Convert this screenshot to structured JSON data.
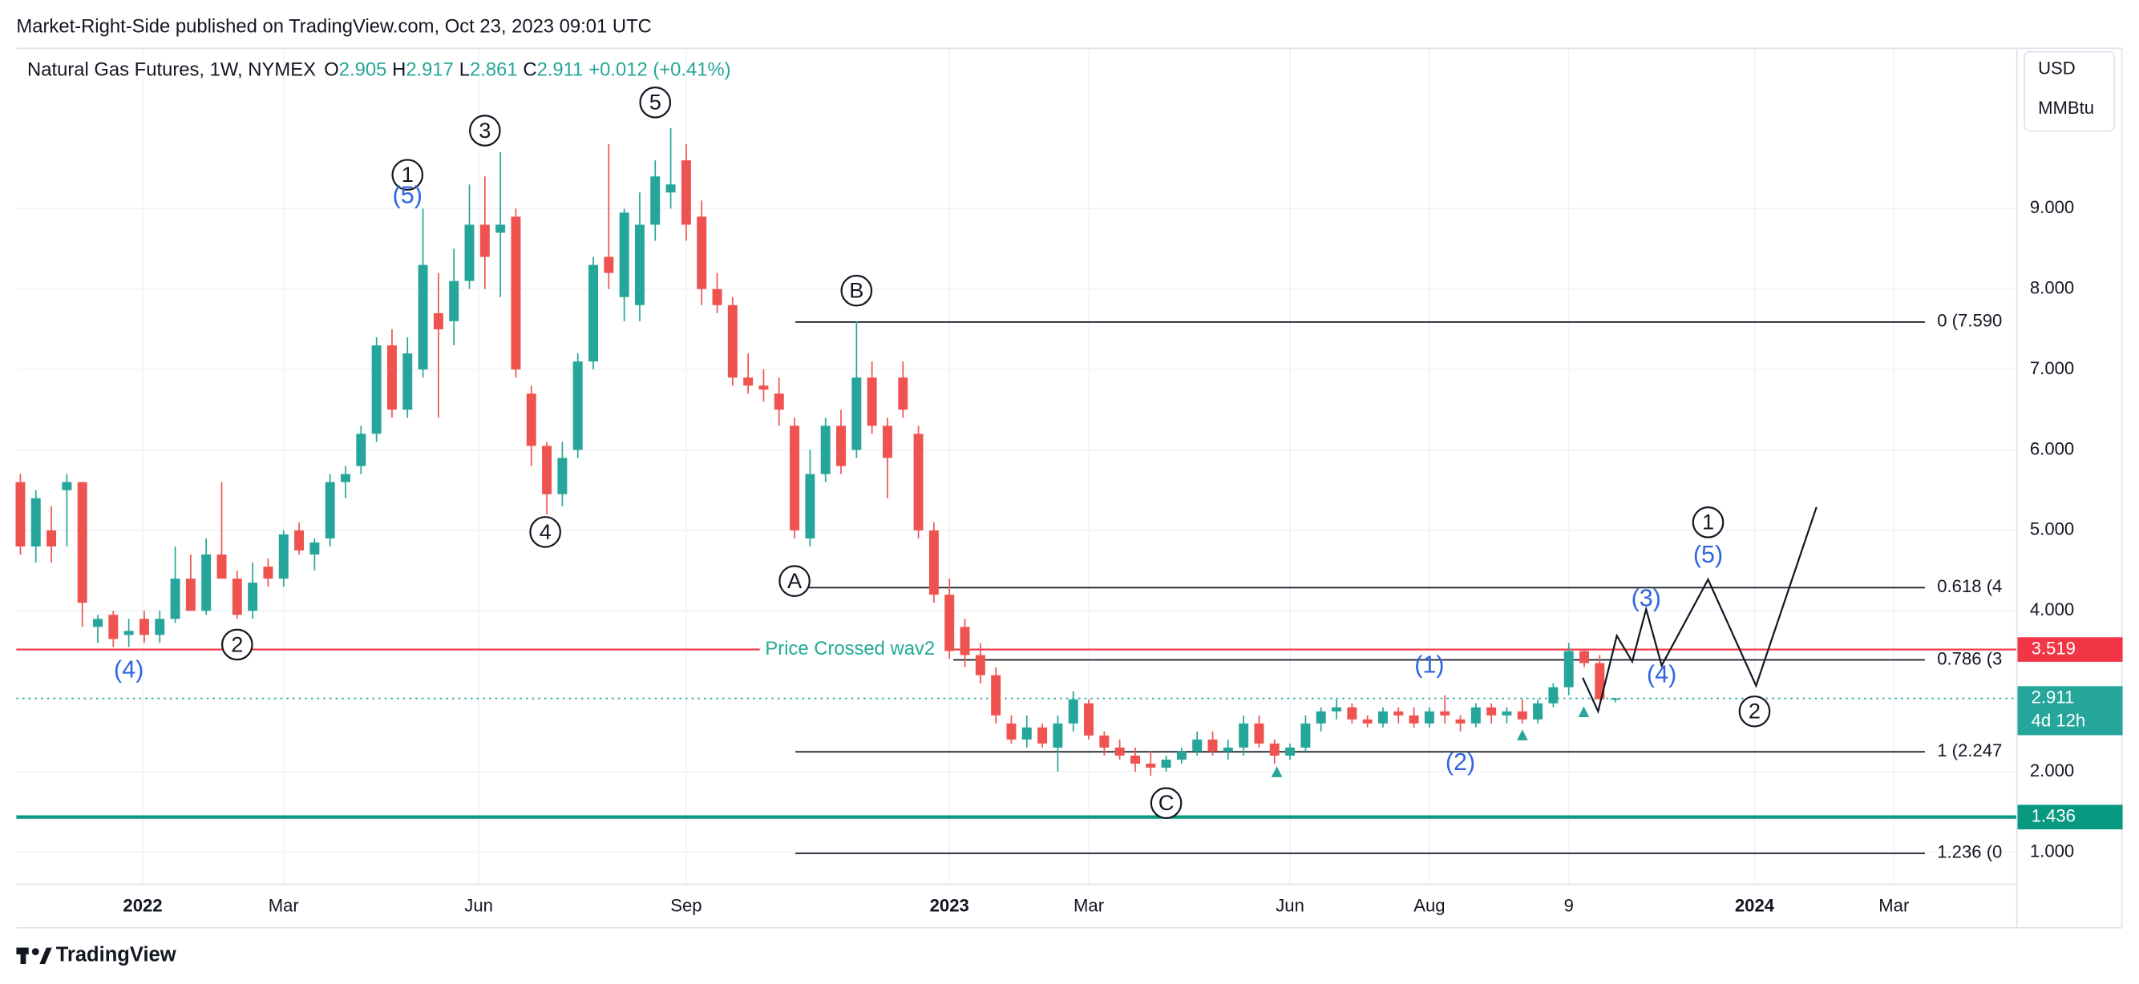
{
  "chart_data": {
    "type": "candlestick",
    "publisher": "Market-Right-Side published on TradingView.com, Oct 23, 2023 09:01 UTC",
    "title": "Natural Gas Futures, 1W, NYMEX",
    "legend": [
      {
        "name": "O",
        "value": 2.905
      },
      {
        "name": "H",
        "value": 2.917
      },
      {
        "name": "L",
        "value": 2.861
      },
      {
        "name": "C",
        "value": 2.911
      }
    ],
    "change": "+0.012 (+0.41%)",
    "currency": "USD",
    "unit": "MMBtu",
    "brand": "TradingView",
    "up_color": "#26a69a",
    "down_color": "#ef5350",
    "x": [
      0,
      1,
      2,
      3,
      4,
      5,
      6,
      7,
      8,
      9,
      10,
      11,
      12,
      13,
      14,
      15,
      16,
      17,
      18,
      19,
      20,
      21,
      22,
      23,
      24,
      25,
      26,
      27,
      28,
      29,
      30,
      31,
      32,
      33,
      34,
      35,
      36,
      37,
      38,
      39,
      40,
      41,
      42,
      43,
      44,
      45,
      46,
      47,
      48,
      49,
      50,
      51,
      52,
      53,
      54,
      55,
      56,
      57,
      58,
      59,
      60,
      61,
      62,
      63,
      64,
      65,
      66,
      67,
      68,
      69,
      70,
      71,
      72,
      73,
      74,
      75,
      76,
      77,
      78,
      79,
      80,
      81,
      82,
      83,
      84,
      85,
      86,
      87,
      88,
      89,
      90,
      91,
      92,
      93,
      94,
      95,
      96,
      97,
      98,
      99,
      100,
      101,
      102,
      103
    ],
    "open": [
      5.6,
      4.8,
      5.0,
      5.5,
      5.6,
      3.8,
      3.95,
      3.7,
      3.9,
      3.7,
      3.9,
      4.4,
      4.0,
      4.7,
      4.4,
      4.0,
      4.55,
      4.4,
      5.0,
      4.7,
      4.9,
      5.6,
      5.8,
      6.2,
      7.3,
      6.5,
      7.0,
      7.7,
      7.6,
      8.1,
      8.8,
      8.7,
      8.9,
      6.7,
      6.05,
      5.45,
      6.0,
      7.1,
      8.4,
      7.9,
      7.8,
      8.8,
      9.2,
      9.6,
      8.9,
      8.0,
      7.8,
      6.9,
      6.8,
      6.7,
      6.3,
      4.9,
      5.7,
      6.3,
      6.0,
      6.9,
      6.3,
      6.9,
      6.2,
      5.0,
      4.2,
      3.8,
      3.45,
      3.2,
      2.6,
      2.4,
      2.55,
      2.3,
      2.6,
      2.85,
      2.45,
      2.3,
      2.2,
      2.1,
      2.05,
      2.15,
      2.25,
      2.4,
      2.25,
      2.3,
      2.6,
      2.35,
      2.2,
      2.3,
      2.6,
      2.75,
      2.8,
      2.65,
      2.6,
      2.75,
      2.7,
      2.6,
      2.75,
      2.65,
      2.6,
      2.8,
      2.7,
      2.75,
      2.65,
      2.85,
      3.05,
      3.5,
      3.35,
      2.905
    ],
    "high": [
      5.7,
      5.5,
      5.3,
      5.7,
      5.6,
      3.95,
      4.0,
      3.9,
      4.0,
      4.0,
      4.8,
      4.7,
      4.9,
      5.6,
      4.5,
      4.6,
      4.65,
      5.0,
      5.1,
      4.9,
      5.7,
      5.8,
      6.3,
      7.4,
      7.5,
      7.4,
      9.0,
      8.2,
      8.5,
      9.3,
      9.4,
      9.7,
      9.0,
      6.8,
      6.1,
      6.1,
      7.2,
      8.4,
      9.8,
      9.0,
      9.2,
      9.6,
      10.0,
      9.8,
      9.1,
      8.2,
      7.9,
      7.2,
      7.0,
      6.9,
      6.4,
      6.0,
      6.4,
      6.5,
      7.6,
      7.1,
      6.4,
      7.1,
      6.3,
      5.1,
      4.4,
      3.9,
      3.6,
      3.3,
      2.7,
      2.7,
      2.6,
      2.7,
      3.0,
      2.9,
      2.5,
      2.4,
      2.3,
      2.25,
      2.2,
      2.3,
      2.5,
      2.5,
      2.4,
      2.7,
      2.7,
      2.4,
      2.35,
      2.7,
      2.8,
      2.9,
      2.85,
      2.7,
      2.8,
      2.8,
      2.8,
      2.8,
      2.95,
      2.7,
      2.85,
      2.85,
      2.8,
      2.9,
      2.9,
      3.1,
      3.6,
      3.52,
      3.45,
      2.917
    ],
    "low": [
      4.7,
      4.6,
      4.6,
      4.8,
      3.8,
      3.6,
      3.55,
      3.55,
      3.6,
      3.6,
      3.85,
      4.1,
      3.95,
      4.4,
      3.9,
      3.9,
      4.3,
      4.3,
      4.7,
      4.5,
      4.8,
      5.4,
      5.7,
      6.1,
      6.4,
      6.4,
      6.9,
      6.4,
      7.3,
      8.0,
      8.0,
      7.9,
      6.9,
      5.8,
      5.2,
      5.3,
      5.9,
      7.0,
      8.0,
      7.6,
      7.6,
      8.6,
      9.0,
      8.6,
      7.8,
      7.7,
      6.8,
      6.7,
      6.6,
      6.3,
      4.9,
      4.8,
      5.6,
      5.7,
      5.9,
      6.2,
      5.4,
      6.4,
      4.9,
      4.1,
      3.4,
      3.3,
      3.1,
      2.6,
      2.35,
      2.3,
      2.3,
      2.0,
      2.5,
      2.4,
      2.2,
      2.15,
      2.0,
      1.95,
      2.0,
      2.1,
      2.2,
      2.2,
      2.15,
      2.2,
      2.3,
      2.1,
      2.15,
      2.25,
      2.5,
      2.65,
      2.6,
      2.55,
      2.55,
      2.6,
      2.55,
      2.55,
      2.6,
      2.5,
      2.55,
      2.6,
      2.6,
      2.6,
      2.6,
      2.8,
      2.95,
      3.3,
      2.9,
      2.861
    ],
    "close": [
      4.8,
      5.4,
      4.8,
      5.6,
      4.1,
      3.9,
      3.65,
      3.75,
      3.7,
      3.9,
      4.4,
      4.0,
      4.7,
      4.4,
      3.95,
      4.35,
      4.4,
      4.95,
      4.75,
      4.85,
      5.6,
      5.7,
      6.2,
      7.3,
      6.5,
      7.2,
      8.3,
      7.5,
      8.1,
      8.8,
      8.4,
      8.8,
      7.0,
      6.05,
      5.45,
      5.9,
      7.1,
      8.3,
      8.2,
      8.95,
      8.8,
      9.4,
      9.3,
      8.8,
      8.0,
      7.8,
      6.9,
      6.8,
      6.75,
      6.5,
      5.0,
      5.7,
      6.3,
      5.8,
      6.9,
      6.3,
      5.9,
      6.5,
      5.0,
      4.2,
      3.5,
      3.45,
      3.2,
      2.7,
      2.4,
      2.55,
      2.35,
      2.6,
      2.9,
      2.45,
      2.3,
      2.2,
      2.1,
      2.05,
      2.15,
      2.25,
      2.4,
      2.25,
      2.3,
      2.6,
      2.35,
      2.2,
      2.3,
      2.6,
      2.75,
      2.8,
      2.65,
      2.6,
      2.75,
      2.7,
      2.6,
      2.75,
      2.7,
      2.6,
      2.8,
      2.7,
      2.75,
      2.65,
      2.85,
      3.05,
      3.5,
      3.35,
      2.9,
      2.911
    ],
    "xlim": [
      -0.26,
      128.9
    ],
    "ylim": [
      0.61,
      11.0
    ],
    "xticks": [
      {
        "value": 7.9,
        "label": "2022"
      },
      {
        "value": 17,
        "label": "Mar"
      },
      {
        "value": 29.6,
        "label": "Jun"
      },
      {
        "value": 43,
        "label": "Sep"
      },
      {
        "value": 60,
        "label": "2023"
      },
      {
        "value": 69,
        "label": "Mar"
      },
      {
        "value": 82,
        "label": "Jun"
      },
      {
        "value": 91,
        "label": "Aug"
      },
      {
        "value": 100,
        "label": "9"
      },
      {
        "value": 112,
        "label": "2024"
      },
      {
        "value": 121,
        "label": "Mar"
      }
    ],
    "yticks": [
      {
        "value": 1,
        "label": "1.000"
      },
      {
        "value": 2,
        "label": "2.000"
      },
      {
        "value": 4,
        "label": "4.000"
      },
      {
        "value": 5,
        "label": "5.000"
      },
      {
        "value": 6,
        "label": "6.000"
      },
      {
        "value": 7,
        "label": "7.000"
      },
      {
        "value": 8,
        "label": "8.000"
      },
      {
        "value": 9,
        "label": "9.000"
      }
    ],
    "grid": true,
    "fib_x": [
      50.05,
      123
    ],
    "fib": [
      {
        "value": 7.59,
        "label": "0 (7.590"
      },
      {
        "value": 4.288,
        "label": "0.618 (4"
      },
      {
        "value": 3.39,
        "label": "0.786 (3"
      },
      {
        "value": 2.247,
        "label": "1 (2.247"
      },
      {
        "value": 0.986,
        "label": "1.236 (0"
      }
    ],
    "hlines": [
      {
        "value": 3.519,
        "label": "3.519",
        "color": "#f23645"
      },
      {
        "value": 2.911,
        "label": "2.911",
        "sublabel": "4d 12h",
        "color": "#26a69a",
        "dotted": true
      },
      {
        "value": 1.436,
        "label": "1.436",
        "color": "#089981"
      }
    ],
    "note": {
      "text": "Price Crossed wav2",
      "x": 48.1,
      "y": 3.519
    },
    "wave_labels": [
      {
        "text": "1",
        "x": 25,
        "y": 9.42,
        "circled": true
      },
      {
        "text": "3",
        "x": 30,
        "y": 9.97,
        "circled": true
      },
      {
        "text": "5",
        "x": 41,
        "y": 10.32,
        "circled": true
      },
      {
        "text": "4",
        "x": 33.9,
        "y": 4.98,
        "circled": true
      },
      {
        "text": "2",
        "x": 14,
        "y": 3.58,
        "circled": true
      },
      {
        "text": "B",
        "x": 54,
        "y": 7.98,
        "circled": true
      },
      {
        "text": "A",
        "x": 50,
        "y": 4.37,
        "circled": true
      },
      {
        "text": "C",
        "x": 74,
        "y": 1.61,
        "circled": true
      },
      {
        "text": "1",
        "x": 109,
        "y": 5.1,
        "circled": true
      },
      {
        "text": "2",
        "x": 112,
        "y": 2.75,
        "circled": true
      },
      {
        "text": "(5)",
        "x": 25,
        "y": 9.15,
        "circled": false
      },
      {
        "text": "(4)",
        "x": 7,
        "y": 3.25,
        "circled": false
      },
      {
        "text": "(1)",
        "x": 91,
        "y": 3.31,
        "circled": false
      },
      {
        "text": "(2)",
        "x": 93,
        "y": 2.1,
        "circled": false
      },
      {
        "text": "(3)",
        "x": 105,
        "y": 4.14,
        "circled": false
      },
      {
        "text": "(4)",
        "x": 106,
        "y": 3.19,
        "circled": false
      },
      {
        "text": "(5)",
        "x": 109,
        "y": 4.68,
        "circled": false
      }
    ],
    "projection": {
      "x": [
        100.9,
        101.9,
        103.1,
        104.1,
        105.0,
        106.0,
        109.0,
        112.1,
        116.0
      ],
      "y": [
        3.17,
        2.75,
        3.69,
        3.37,
        4.02,
        3.32,
        4.39,
        3.07,
        5.29
      ]
    }
  }
}
